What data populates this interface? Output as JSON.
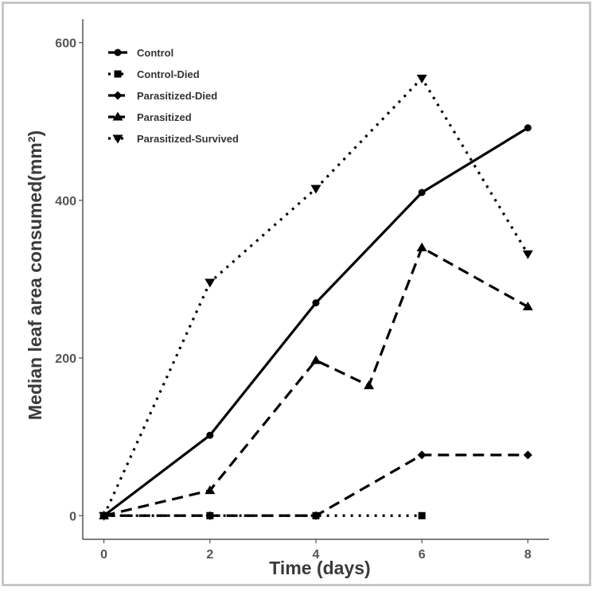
{
  "chart_data": {
    "type": "line",
    "title": "",
    "xlabel": "Time (days)",
    "ylabel": "Median leaf area consumed(mm²)",
    "xlim": [
      -0.4,
      8.4
    ],
    "ylim": [
      -30,
      630
    ],
    "x_ticks": [
      0,
      2,
      4,
      6,
      8
    ],
    "y_ticks": [
      0,
      200,
      400,
      600
    ],
    "grid": false,
    "legend_position": "top-left",
    "series": [
      {
        "name": "Control",
        "marker": "circle",
        "dash": "solid",
        "x": [
          0,
          2,
          4,
          6,
          8
        ],
        "y": [
          0,
          102,
          270,
          410,
          492
        ]
      },
      {
        "name": "Control-Died",
        "marker": "square",
        "dash": "dotted",
        "x": [
          0,
          2,
          4,
          6
        ],
        "y": [
          0,
          0,
          0,
          0
        ]
      },
      {
        "name": "Parasitized-Died",
        "marker": "diamond",
        "dash": "dashed",
        "x": [
          0,
          2,
          4,
          6,
          8
        ],
        "y": [
          0,
          0,
          0,
          77,
          77
        ]
      },
      {
        "name": "Parasitized",
        "marker": "triangle-up",
        "dash": "dashed",
        "x": [
          0,
          2,
          4,
          5,
          6,
          8
        ],
        "y": [
          0,
          32,
          197,
          165,
          340,
          265
        ]
      },
      {
        "name": "Parasitized-Survived",
        "marker": "triangle-down",
        "dash": "dotted",
        "x": [
          0,
          2,
          4,
          6,
          8
        ],
        "y": [
          0,
          296,
          415,
          555,
          332
        ]
      }
    ]
  }
}
